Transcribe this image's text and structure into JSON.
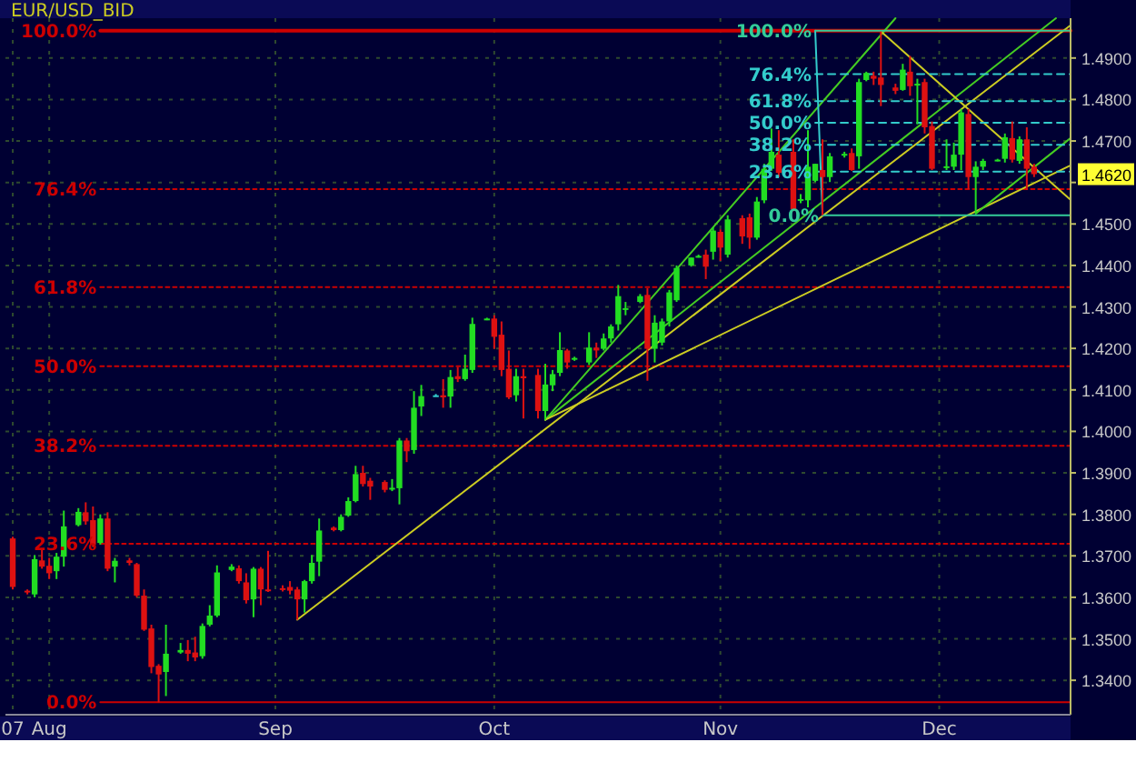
{
  "chart_data": {
    "type": "candlestick",
    "title": "EUR/USD_BID",
    "x": [
      "2007-07-27",
      "2007-07-29",
      "2007-07-30",
      "2007-07-31",
      "2007-08-01",
      "2007-08-02",
      "2007-08-03",
      "2007-08-05",
      "2007-08-06",
      "2007-08-07",
      "2007-08-08",
      "2007-08-09",
      "2007-08-10",
      "2007-08-12",
      "2007-08-13",
      "2007-08-14",
      "2007-08-15",
      "2007-08-16",
      "2007-08-17",
      "2007-08-19",
      "2007-08-20",
      "2007-08-21",
      "2007-08-22",
      "2007-08-23",
      "2007-08-24",
      "2007-08-26",
      "2007-08-27",
      "2007-08-28",
      "2007-08-29",
      "2007-08-30",
      "2007-08-31",
      "2007-09-02",
      "2007-09-03",
      "2007-09-04",
      "2007-09-05",
      "2007-09-06",
      "2007-09-07",
      "2007-09-09",
      "2007-09-10",
      "2007-09-11",
      "2007-09-12",
      "2007-09-13",
      "2007-09-14",
      "2007-09-16",
      "2007-09-17",
      "2007-09-18",
      "2007-09-19",
      "2007-09-20",
      "2007-09-21",
      "2007-09-23",
      "2007-09-24",
      "2007-09-25",
      "2007-09-26",
      "2007-09-27",
      "2007-09-28",
      "2007-09-30",
      "2007-10-01",
      "2007-10-02",
      "2007-10-03",
      "2007-10-04",
      "2007-10-05",
      "2007-10-07",
      "2007-10-08",
      "2007-10-09",
      "2007-10-10",
      "2007-10-11",
      "2007-10-12",
      "2007-10-14",
      "2007-10-15",
      "2007-10-16",
      "2007-10-17",
      "2007-10-18",
      "2007-10-19",
      "2007-10-21",
      "2007-10-22",
      "2007-10-23",
      "2007-10-24",
      "2007-10-25",
      "2007-10-26",
      "2007-10-28",
      "2007-10-29",
      "2007-10-30",
      "2007-10-31",
      "2007-11-01",
      "2007-11-02",
      "2007-11-04",
      "2007-11-05",
      "2007-11-06",
      "2007-11-07",
      "2007-11-08",
      "2007-11-09",
      "2007-11-11",
      "2007-11-12",
      "2007-11-13",
      "2007-11-14",
      "2007-11-15",
      "2007-11-16",
      "2007-11-18",
      "2007-11-19",
      "2007-11-20",
      "2007-11-21",
      "2007-11-22",
      "2007-11-23",
      "2007-11-25",
      "2007-11-26",
      "2007-11-27",
      "2007-11-28",
      "2007-11-29",
      "2007-11-30",
      "2007-12-02",
      "2007-12-03",
      "2007-12-04",
      "2007-12-05",
      "2007-12-06",
      "2007-12-07",
      "2007-12-09",
      "2007-12-10",
      "2007-12-11",
      "2007-12-12",
      "2007-12-13",
      "2007-12-14"
    ],
    "ohlc": [
      [
        1.3742,
        1.3746,
        1.3619,
        1.3625
      ],
      [
        1.3616,
        1.3619,
        1.3607,
        1.3612
      ],
      [
        1.3607,
        1.3702,
        1.36,
        1.3692
      ],
      [
        1.3689,
        1.3717,
        1.3669,
        1.3674
      ],
      [
        1.3676,
        1.3695,
        1.3644,
        1.3658
      ],
      [
        1.3663,
        1.3707,
        1.3644,
        1.3698
      ],
      [
        1.3698,
        1.3809,
        1.3674,
        1.3771
      ],
      [
        1.3774,
        1.3815,
        1.3771,
        1.3806
      ],
      [
        1.3805,
        1.3829,
        1.3775,
        1.3783
      ],
      [
        1.3786,
        1.3819,
        1.3721,
        1.3727
      ],
      [
        1.3731,
        1.38,
        1.3727,
        1.379
      ],
      [
        1.379,
        1.3805,
        1.3663,
        1.3669
      ],
      [
        1.3674,
        1.3695,
        1.3636,
        1.3688
      ],
      [
        1.3689,
        1.3695,
        1.3677,
        1.3683
      ],
      [
        1.368,
        1.3683,
        1.36,
        1.3604
      ],
      [
        1.3604,
        1.3619,
        1.3519,
        1.3522
      ],
      [
        1.3525,
        1.3534,
        1.3417,
        1.3432
      ],
      [
        1.3435,
        1.3439,
        1.3347,
        1.3414
      ],
      [
        1.342,
        1.3534,
        1.3362,
        1.3464
      ],
      [
        1.3467,
        1.349,
        1.3464,
        1.3473
      ],
      [
        1.3473,
        1.3497,
        1.3446,
        1.3464
      ],
      [
        1.3467,
        1.3505,
        1.3446,
        1.3455
      ],
      [
        1.3458,
        1.3537,
        1.3452,
        1.3531
      ],
      [
        1.3534,
        1.3581,
        1.353,
        1.3556
      ],
      [
        1.3556,
        1.3677,
        1.3552,
        1.366
      ],
      [
        1.3666,
        1.368,
        1.3663,
        1.3674
      ],
      [
        1.367,
        1.3677,
        1.3633,
        1.3639
      ],
      [
        1.3636,
        1.3658,
        1.3585,
        1.3593
      ],
      [
        1.3595,
        1.3673,
        1.3552,
        1.3669
      ],
      [
        1.3669,
        1.3673,
        1.3581,
        1.3619
      ],
      [
        1.3619,
        1.3712,
        1.3613,
        1.3616
      ],
      [
        1.3622,
        1.3629,
        1.3614,
        1.3619
      ],
      [
        1.3625,
        1.3639,
        1.3607,
        1.3616
      ],
      [
        1.3619,
        1.3625,
        1.3546,
        1.3595
      ],
      [
        1.3595,
        1.3642,
        1.3563,
        1.3639
      ],
      [
        1.3639,
        1.3702,
        1.3633,
        1.3683
      ],
      [
        1.3686,
        1.379,
        1.3651,
        1.3761
      ],
      [
        1.3768,
        1.3771,
        1.3759,
        1.3762
      ],
      [
        1.3762,
        1.38,
        1.3759,
        1.3794
      ],
      [
        1.3797,
        1.3841,
        1.3794,
        1.3832
      ],
      [
        1.3832,
        1.3917,
        1.3829,
        1.3897
      ],
      [
        1.39,
        1.3917,
        1.3867,
        1.3873
      ],
      [
        1.3881,
        1.3888,
        1.3835,
        1.3867
      ],
      [
        1.3878,
        1.3882,
        1.3853,
        1.3859
      ],
      [
        1.3862,
        1.3885,
        1.3856,
        1.3864
      ],
      [
        1.3863,
        1.3984,
        1.3824,
        1.3978
      ],
      [
        1.3978,
        1.3984,
        1.3926,
        1.3952
      ],
      [
        1.3955,
        1.4097,
        1.3946,
        1.4057
      ],
      [
        1.406,
        1.4112,
        1.4037,
        1.4085
      ],
      [
        1.4087,
        1.409,
        1.4084,
        1.4087
      ],
      [
        1.4087,
        1.4126,
        1.4057,
        1.4082
      ],
      [
        1.4084,
        1.4148,
        1.4057,
        1.4131
      ],
      [
        1.4133,
        1.4155,
        1.4119,
        1.4126
      ],
      [
        1.4126,
        1.4185,
        1.4122,
        1.4151
      ],
      [
        1.4148,
        1.4274,
        1.4141,
        1.4259
      ],
      [
        1.4271,
        1.4274,
        1.4268,
        1.4272
      ],
      [
        1.4272,
        1.428,
        1.4199,
        1.4228
      ],
      [
        1.4233,
        1.4265,
        1.4133,
        1.4148
      ],
      [
        1.4151,
        1.4195,
        1.4078,
        1.4082
      ],
      [
        1.4087,
        1.4151,
        1.4072,
        1.4133
      ],
      [
        1.4133,
        1.4151,
        1.4031,
        1.4128
      ],
      [
        1.4136,
        1.4151,
        1.4031,
        1.4049
      ],
      [
        1.4049,
        1.4163,
        1.4028,
        1.4113
      ],
      [
        1.4111,
        1.4148,
        1.4097,
        1.4138
      ],
      [
        1.4141,
        1.4239,
        1.4133,
        1.4196
      ],
      [
        1.4195,
        1.4199,
        1.4151,
        1.4166
      ],
      [
        1.4174,
        1.418,
        1.417,
        1.4177
      ],
      [
        1.4166,
        1.4239,
        1.416,
        1.4202
      ],
      [
        1.4202,
        1.4214,
        1.4177,
        1.4195
      ],
      [
        1.4199,
        1.4236,
        1.4195,
        1.4224
      ],
      [
        1.4224,
        1.4258,
        1.4214,
        1.4253
      ],
      [
        1.4258,
        1.4353,
        1.4243,
        1.4326
      ],
      [
        1.4296,
        1.4312,
        1.428,
        1.4297
      ],
      [
        1.4312,
        1.4331,
        1.4309,
        1.4326
      ],
      [
        1.4329,
        1.4345,
        1.4122,
        1.4199
      ],
      [
        1.4199,
        1.428,
        1.4166,
        1.4262
      ],
      [
        1.4214,
        1.4272,
        1.4207,
        1.4265
      ],
      [
        1.4265,
        1.4341,
        1.4253,
        1.4335
      ],
      [
        1.4316,
        1.44,
        1.4312,
        1.4394
      ],
      [
        1.44,
        1.4419,
        1.4397,
        1.4419
      ],
      [
        1.4421,
        1.4426,
        1.4419,
        1.4423
      ],
      [
        1.4426,
        1.4438,
        1.4367,
        1.4397
      ],
      [
        1.4433,
        1.4492,
        1.4414,
        1.4484
      ],
      [
        1.4481,
        1.4487,
        1.4411,
        1.4443
      ],
      [
        1.4426,
        1.4521,
        1.4419,
        1.4511
      ],
      [
        1.4514,
        1.4521,
        1.4452,
        1.447
      ],
      [
        1.4516,
        1.4525,
        1.444,
        1.4467
      ],
      [
        1.4467,
        1.4565,
        1.4462,
        1.4554
      ],
      [
        1.4557,
        1.4645,
        1.455,
        1.4633
      ],
      [
        1.4633,
        1.473,
        1.4628,
        1.4674
      ],
      [
        1.4667,
        1.4726,
        1.4613,
        1.4623
      ],
      [
        1.4674,
        1.4704,
        1.4531,
        1.4535
      ],
      [
        1.4557,
        1.4572,
        1.455,
        1.456
      ],
      [
        1.4557,
        1.4726,
        1.454,
        1.4638
      ],
      [
        1.4604,
        1.4645,
        1.4601,
        1.4645
      ],
      [
        1.463,
        1.4704,
        1.4521,
        1.4613
      ],
      [
        1.4613,
        1.4671,
        1.4601,
        1.4663
      ],
      [
        1.4667,
        1.4674,
        1.466,
        1.4669
      ],
      [
        1.4671,
        1.4682,
        1.4628,
        1.463
      ],
      [
        1.4663,
        1.485,
        1.4633,
        1.4842
      ],
      [
        1.4847,
        1.4867,
        1.4844,
        1.4864
      ],
      [
        1.4857,
        1.4867,
        1.4835,
        1.485
      ],
      [
        1.4853,
        1.4964,
        1.4784,
        1.4835
      ],
      [
        1.4829,
        1.4838,
        1.4813,
        1.4821
      ],
      [
        1.4823,
        1.4886,
        1.4821,
        1.4872
      ],
      [
        1.4867,
        1.4905,
        1.4809,
        1.4832
      ],
      [
        1.4835,
        1.485,
        1.474,
        1.4838
      ],
      [
        1.4842,
        1.485,
        1.4718,
        1.4733
      ],
      [
        1.4736,
        1.4747,
        1.463,
        1.4633
      ],
      [
        1.4636,
        1.4704,
        1.463,
        1.4639
      ],
      [
        1.4638,
        1.4696,
        1.463,
        1.4667
      ],
      [
        1.4667,
        1.4777,
        1.463,
        1.4769
      ],
      [
        1.4765,
        1.4777,
        1.4584,
        1.4613
      ],
      [
        1.4613,
        1.4651,
        1.4525,
        1.4638
      ],
      [
        1.4638,
        1.4657,
        1.463,
        1.4652
      ],
      [
        1.4654,
        1.4657,
        1.4651,
        1.4655
      ],
      [
        1.4657,
        1.4718,
        1.4648,
        1.4709
      ],
      [
        1.4707,
        1.4747,
        1.4648,
        1.4655
      ],
      [
        1.4652,
        1.4711,
        1.4645,
        1.4704
      ],
      [
        1.4704,
        1.4733,
        1.4582,
        1.4633
      ],
      [
        1.4638,
        1.4645,
        1.4613,
        1.462
      ]
    ],
    "colors": [
      "#dd1111",
      "#dd1111",
      "#22dd22",
      "#dd1111",
      "#dd1111",
      "#22dd22",
      "#22dd22",
      "#22dd22",
      "#dd1111",
      "#dd1111",
      "#22dd22",
      "#dd1111",
      "#22dd22",
      "#dd1111",
      "#dd1111",
      "#dd1111",
      "#dd1111",
      "#dd1111",
      "#22dd22",
      "#22dd22",
      "#dd1111",
      "#dd1111",
      "#22dd22",
      "#22dd22",
      "#22dd22",
      "#22dd22",
      "#dd1111",
      "#dd1111",
      "#22dd22",
      "#dd1111",
      "#dd1111",
      "#dd1111",
      "#dd1111",
      "#dd1111",
      "#22dd22",
      "#22dd22",
      "#22dd22",
      "#dd1111",
      "#22dd22",
      "#22dd22",
      "#22dd22",
      "#dd1111",
      "#dd1111",
      "#dd1111",
      "#22dd22",
      "#22dd22",
      "#dd1111",
      "#22dd22",
      "#22dd22",
      "#33cccc",
      "#dd1111",
      "#22dd22",
      "#dd1111",
      "#22dd22",
      "#22dd22",
      "#22dd22",
      "#dd1111",
      "#dd1111",
      "#dd1111",
      "#22dd22",
      "#dd1111",
      "#dd1111",
      "#22dd22",
      "#22dd22",
      "#22dd22",
      "#dd1111",
      "#22dd22",
      "#22dd22",
      "#dd1111",
      "#22dd22",
      "#22dd22",
      "#22dd22",
      "#22dd22",
      "#22dd22",
      "#dd1111",
      "#22dd22",
      "#22dd22",
      "#22dd22",
      "#22dd22",
      "#22dd22",
      "#22dd22",
      "#dd1111",
      "#22dd22",
      "#dd1111",
      "#22dd22",
      "#dd1111",
      "#dd1111",
      "#22dd22",
      "#22dd22",
      "#22dd22",
      "#dd1111",
      "#dd1111",
      "#22dd22",
      "#22dd22",
      "#22dd22",
      "#dd1111",
      "#22dd22",
      "#22dd22",
      "#dd1111",
      "#22dd22",
      "#22dd22",
      "#dd1111",
      "#dd1111",
      "#dd1111",
      "#22dd22",
      "#dd1111",
      "#22dd22",
      "#dd1111",
      "#dd1111",
      "#22dd22",
      "#22dd22",
      "#22dd22",
      "#dd1111",
      "#22dd22",
      "#22dd22",
      "#22dd22",
      "#22dd22",
      "#dd1111",
      "#22dd22",
      "#dd1111",
      "#dd1111"
    ],
    "series": [
      {
        "type": "line",
        "name": "100.0%",
        "x": [
          "2007-08-08",
          "2007-12-19"
        ],
        "values": [
          1.4966,
          1.4966
        ],
        "color": "#cc0000",
        "line_style": "solid"
      },
      {
        "type": "line",
        "name": "76.4%",
        "x": [
          "2007-08-08",
          "2007-12-19"
        ],
        "values": [
          1.4584,
          1.4584
        ],
        "color": "#cc0000",
        "line_style": "dotted"
      },
      {
        "type": "line",
        "name": "61.8%",
        "x": [
          "2007-08-08",
          "2007-12-19"
        ],
        "values": [
          1.4348,
          1.4348
        ],
        "color": "#cc0000",
        "line_style": "dotted"
      },
      {
        "type": "line",
        "name": "50.0%",
        "x": [
          "2007-08-08",
          "2007-12-19"
        ],
        "values": [
          1.4157,
          1.4157
        ],
        "color": "#cc0000",
        "line_style": "dotted"
      },
      {
        "type": "line",
        "name": "38.2%",
        "x": [
          "2007-08-08",
          "2007-12-19"
        ],
        "values": [
          1.3965,
          1.3965
        ],
        "color": "#cc0000",
        "line_style": "dotted"
      },
      {
        "type": "line",
        "name": "23.6%",
        "x": [
          "2007-08-08",
          "2007-12-19"
        ],
        "values": [
          1.3729,
          1.3729
        ],
        "color": "#cc0000",
        "line_style": "dotted"
      },
      {
        "type": "line",
        "name": "0.0%",
        "x": [
          "2007-08-08",
          "2007-12-19"
        ],
        "values": [
          1.3347,
          1.3347
        ],
        "color": "#cc0000",
        "line_style": "solid"
      },
      {
        "type": "line",
        "x": [
          "2007-09-04",
          "2007-12-19"
        ],
        "values": [
          1.3546,
          1.4979
        ],
        "color": "#cccc22",
        "line_style": "solid"
      },
      {
        "type": "line",
        "x": [
          "2007-10-08",
          "2007-11-25"
        ],
        "values": [
          1.4028,
          1.4996
        ],
        "color": "#44cc22",
        "line_style": "solid"
      },
      {
        "type": "line",
        "x": [
          "2007-10-08",
          "2007-12-17"
        ],
        "values": [
          1.4028,
          1.4996
        ],
        "color": "#44cc22",
        "line_style": "solid"
      },
      {
        "type": "line",
        "x": [
          "2007-10-08",
          "2007-12-19"
        ],
        "values": [
          1.4028,
          1.4641
        ],
        "color": "#cccc22",
        "line_style": "solid"
      },
      {
        "type": "line",
        "x": [
          "2007-12-06",
          "2007-12-19"
        ],
        "values": [
          1.4525,
          1.4707
        ],
        "color": "#44cc22",
        "line_style": "solid"
      },
      {
        "type": "line",
        "x": [
          "2007-11-23",
          "2007-12-19"
        ],
        "values": [
          1.4964,
          1.4558
        ],
        "color": "#cccc22",
        "line_style": "solid"
      },
      {
        "type": "line",
        "x": [
          "2007-11-14",
          "2007-11-15"
        ],
        "values": [
          1.4966,
          1.4521
        ],
        "color": "#33cccc",
        "line_style": "solid"
      },
      {
        "type": "line",
        "name": "100.0%",
        "x": [
          "2007-11-14",
          "2007-12-19"
        ],
        "values": [
          1.4966,
          1.4966
        ],
        "color": "#33cc99",
        "line_style": "solid"
      },
      {
        "type": "line",
        "name": "76.4%",
        "x": [
          "2007-11-14",
          "2007-12-19"
        ],
        "values": [
          1.4861,
          1.4861
        ],
        "color": "#33cccc",
        "line_style": "dashed"
      },
      {
        "type": "line",
        "name": "61.8%",
        "x": [
          "2007-11-14",
          "2007-12-19"
        ],
        "values": [
          1.4796,
          1.4796
        ],
        "color": "#33cccc",
        "line_style": "dashed"
      },
      {
        "type": "line",
        "name": "50.0%",
        "x": [
          "2007-11-14",
          "2007-12-19"
        ],
        "values": [
          1.4744,
          1.4744
        ],
        "color": "#33cccc",
        "line_style": "dashed"
      },
      {
        "type": "line",
        "name": "38.2%",
        "x": [
          "2007-11-14",
          "2007-12-19"
        ],
        "values": [
          1.4691,
          1.4691
        ],
        "color": "#33cccc",
        "line_style": "dashed"
      },
      {
        "type": "line",
        "name": "23.6%",
        "x": [
          "2007-11-14",
          "2007-12-19"
        ],
        "values": [
          1.4626,
          1.4626
        ],
        "color": "#33cccc",
        "line_style": "dashed"
      },
      {
        "type": "line",
        "name": "0.0%",
        "x": [
          "2007-11-15",
          "2007-12-19"
        ],
        "values": [
          1.4521,
          1.4521
        ],
        "color": "#33cc99",
        "line_style": "solid"
      }
    ],
    "annotations": [
      {
        "text": "1.4620",
        "x": "2007-12-14",
        "y": 1.462
      }
    ],
    "xlim": [
      "2007-07-26",
      "2007-12-19"
    ],
    "xticks": [
      {
        "value": "2007-07-27",
        "label": "07"
      },
      {
        "value": "2007-08-01",
        "label": "Aug"
      },
      {
        "value": "2007-09-01",
        "label": "Sep"
      },
      {
        "value": "2007-10-01",
        "label": "Oct"
      },
      {
        "value": "2007-11-01",
        "label": "Nov"
      },
      {
        "value": "2007-12-01",
        "label": "Dec"
      }
    ],
    "ylim": [
      1.3317,
      1.4996
    ],
    "yticks": [
      {
        "value": 1.34,
        "label": "1.3400"
      },
      {
        "value": 1.35,
        "label": "1.3500"
      },
      {
        "value": 1.36,
        "label": "1.3600"
      },
      {
        "value": 1.37,
        "label": "1.3700"
      },
      {
        "value": 1.38,
        "label": "1.3800"
      },
      {
        "value": 1.39,
        "label": "1.3900"
      },
      {
        "value": 1.4,
        "label": "1.4000"
      },
      {
        "value": 1.41,
        "label": "1.4100"
      },
      {
        "value": 1.42,
        "label": "1.4200"
      },
      {
        "value": 1.43,
        "label": "1.4300"
      },
      {
        "value": 1.44,
        "label": "1.4400"
      },
      {
        "value": 1.45,
        "label": "1.4500"
      },
      {
        "value": 1.46,
        "label": null
      },
      {
        "value": 1.47,
        "label": "1.4700"
      },
      {
        "value": 1.48,
        "label": "1.4800"
      },
      {
        "value": 1.49,
        "label": "1.4900"
      }
    ],
    "grid": true
  }
}
